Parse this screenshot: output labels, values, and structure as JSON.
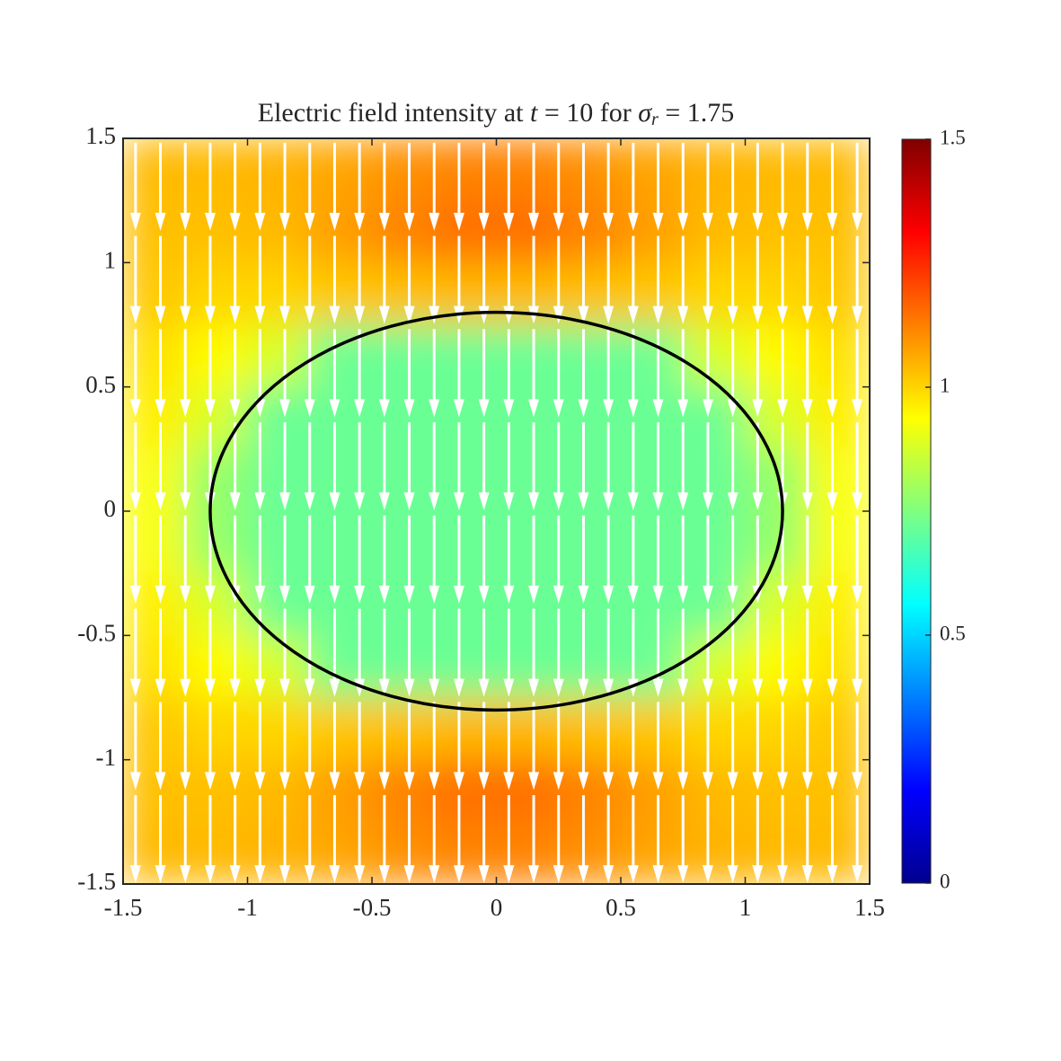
{
  "chart_data": {
    "type": "heatmap-quiver",
    "title": [
      "Electric field intensity at ",
      "t",
      " = 10 for ",
      "σ",
      "r",
      " = 1.75"
    ],
    "xlim": [
      -1.5,
      1.5
    ],
    "ylim": [
      -1.5,
      1.5
    ],
    "xticks": [
      -1.5,
      -1,
      -0.5,
      0,
      0.5,
      1,
      1.5
    ],
    "yticks": [
      -1.5,
      -1,
      -0.5,
      0,
      0.5,
      1,
      1.5
    ],
    "colormap": "jet",
    "clim": [
      0,
      1.5
    ],
    "cticks": [
      0,
      0.5,
      1,
      1.5
    ],
    "heatmap": {
      "x": [
        -1.375,
        -1.125,
        -0.875,
        -0.625,
        -0.375,
        -0.125,
        0.125,
        0.375,
        0.625,
        0.875,
        1.125,
        1.375
      ],
      "y": [
        1.375,
        1.125,
        0.875,
        0.625,
        0.375,
        0.125,
        -0.125,
        -0.375,
        -0.625,
        -0.875,
        -1.125,
        -1.375
      ],
      "z": [
        [
          1.04,
          1.04,
          1.05,
          1.07,
          1.1,
          1.12,
          1.12,
          1.1,
          1.07,
          1.05,
          1.04,
          1.04
        ],
        [
          1.03,
          1.03,
          1.04,
          1.08,
          1.12,
          1.15,
          1.15,
          1.12,
          1.08,
          1.04,
          1.03,
          1.03
        ],
        [
          1.02,
          1,
          1,
          1.02,
          1.03,
          1.04,
          1.04,
          1.03,
          1.02,
          1,
          1,
          1.02
        ],
        [
          0.98,
          0.94,
          0.88,
          0.72,
          0.72,
          0.72,
          0.72,
          0.72,
          0.72,
          0.88,
          0.94,
          0.98
        ],
        [
          0.96,
          0.88,
          0.72,
          0.72,
          0.72,
          0.72,
          0.72,
          0.72,
          0.72,
          0.72,
          0.88,
          0.96
        ],
        [
          0.93,
          0.78,
          0.72,
          0.72,
          0.72,
          0.72,
          0.72,
          0.72,
          0.72,
          0.72,
          0.78,
          0.93
        ],
        [
          0.93,
          0.78,
          0.72,
          0.72,
          0.72,
          0.72,
          0.72,
          0.72,
          0.72,
          0.72,
          0.78,
          0.93
        ],
        [
          0.96,
          0.88,
          0.72,
          0.72,
          0.72,
          0.72,
          0.72,
          0.72,
          0.72,
          0.72,
          0.88,
          0.96
        ],
        [
          0.98,
          0.94,
          0.88,
          0.72,
          0.72,
          0.72,
          0.72,
          0.72,
          0.72,
          0.88,
          0.94,
          0.98
        ],
        [
          1.02,
          1,
          1,
          1.02,
          1.03,
          1.04,
          1.04,
          1.03,
          1.02,
          1,
          1,
          1.02
        ],
        [
          1.03,
          1.03,
          1.04,
          1.08,
          1.12,
          1.15,
          1.15,
          1.12,
          1.08,
          1.04,
          1.03,
          1.03
        ],
        [
          1.04,
          1.04,
          1.05,
          1.07,
          1.1,
          1.12,
          1.12,
          1.1,
          1.07,
          1.05,
          1.04,
          1.04
        ]
      ]
    },
    "quiver": {
      "x": [
        -1.45,
        -1.35,
        -1.25,
        -1.15,
        -1.05,
        -0.95,
        -0.85,
        -0.75,
        -0.65,
        -0.55,
        -0.45,
        -0.35,
        -0.25,
        -0.15,
        -0.05,
        0.05,
        0.15,
        0.25,
        0.35,
        0.45,
        0.55,
        0.65,
        0.75,
        0.85,
        0.95,
        1.05,
        1.15,
        1.25,
        1.35,
        1.45
      ],
      "y": [
        1.3125,
        0.9375,
        0.5625,
        0.1875,
        -0.1875,
        -0.5625,
        -0.9375,
        -1.3125
      ],
      "length": 0.34,
      "color": "#ffffff"
    },
    "ellipse": {
      "cx": 0,
      "cy": 0,
      "rx": 1.15,
      "ry": 0.8,
      "color": "#000000"
    }
  }
}
